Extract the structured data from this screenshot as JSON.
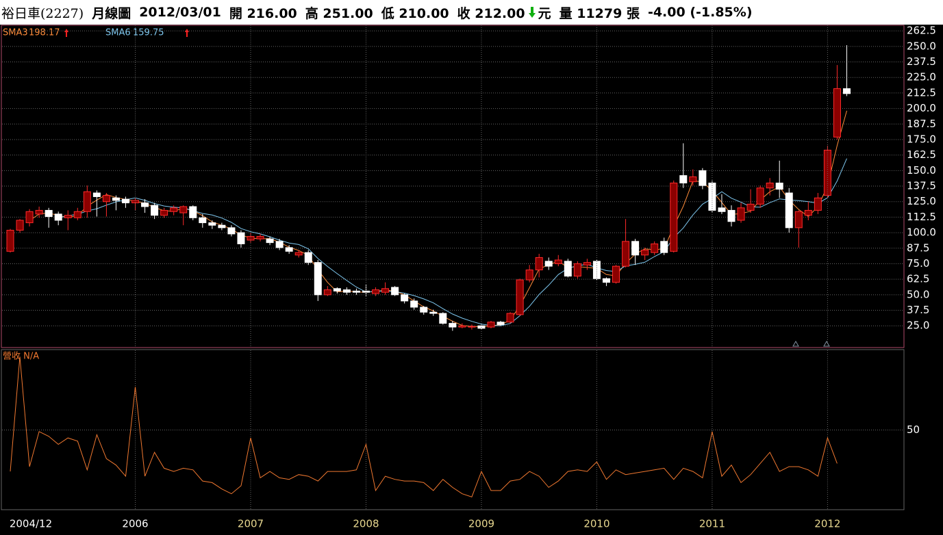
{
  "header": {
    "items": [
      "裕日車(2227)",
      "月線圖",
      "2012/03/01",
      "開 216.00",
      "高 251.00",
      "低 210.00",
      "收 212.00",
      "元",
      "量 11279 張",
      "-4.00 (-1.85%)"
    ]
  },
  "chart_data": [
    {
      "type": "candlestick",
      "open": [
        85,
        102,
        108,
        115,
        118,
        115,
        112,
        112,
        117,
        132,
        125,
        128,
        127,
        124,
        124,
        122,
        114,
        117,
        116,
        121,
        112,
        108,
        106,
        104,
        100,
        94,
        95,
        95,
        93,
        88,
        82,
        84,
        76,
        50,
        55,
        54,
        53,
        53,
        51,
        52,
        56,
        50,
        45,
        40,
        36,
        35,
        27,
        24,
        24,
        25,
        24,
        28,
        28,
        34,
        62,
        70,
        77,
        75,
        77,
        65,
        74,
        77,
        63,
        60,
        73,
        93,
        82,
        84,
        93,
        85,
        146,
        141,
        150,
        140,
        120,
        118,
        110,
        118,
        123,
        136,
        140,
        132,
        104,
        114,
        118,
        130,
        177,
        216
      ],
      "high": [
        103,
        111,
        119,
        121,
        120,
        117,
        118,
        120,
        138,
        134,
        132,
        130,
        129,
        128,
        127,
        124,
        120,
        122,
        122,
        122,
        115,
        110,
        108,
        106,
        102,
        100,
        99,
        97,
        95,
        90,
        86,
        86,
        78,
        57,
        56,
        56,
        55,
        58,
        56,
        60,
        57,
        51,
        47,
        41,
        38,
        36,
        29,
        27,
        26,
        26,
        29,
        29,
        36,
        63,
        74,
        83,
        80,
        82,
        79,
        77,
        79,
        78,
        64,
        74,
        111,
        95,
        88,
        93,
        96,
        142,
        172,
        151,
        152,
        142,
        131,
        122,
        124,
        135,
        138,
        144,
        158,
        136,
        118,
        125,
        132,
        170,
        235,
        251
      ],
      "low": [
        84,
        100,
        105,
        112,
        104,
        106,
        102,
        110,
        112,
        113,
        113,
        118,
        120,
        118,
        116,
        111,
        112,
        114,
        106,
        110,
        104,
        103,
        102,
        97,
        88,
        92,
        93,
        90,
        86,
        83,
        80,
        74,
        45,
        49,
        51,
        50,
        50,
        49,
        49,
        50,
        49,
        43,
        38,
        34,
        33,
        26,
        21,
        23,
        22,
        22,
        23,
        25,
        27,
        33,
        60,
        64,
        70,
        73,
        64,
        63,
        70,
        62,
        57,
        59,
        72,
        74,
        78,
        82,
        82,
        84,
        136,
        138,
        135,
        116,
        115,
        105,
        108,
        116,
        120,
        130,
        128,
        100,
        88,
        110,
        115,
        128,
        175,
        210
      ],
      "close": [
        102,
        110,
        117,
        118,
        113,
        110,
        114,
        117,
        133,
        129,
        130,
        126,
        124,
        126,
        121,
        114,
        118,
        120,
        121,
        112,
        108,
        106,
        104,
        99,
        91,
        97,
        97,
        92,
        88,
        85,
        84,
        76,
        50,
        54,
        53,
        52,
        52,
        52,
        54,
        55,
        50,
        45,
        40,
        36,
        35,
        27,
        24,
        25,
        24.5,
        23,
        28,
        26,
        35,
        62,
        70,
        80,
        73,
        78,
        65,
        75,
        76,
        63,
        60,
        73,
        93,
        82,
        86,
        91,
        84,
        140,
        140,
        145,
        138,
        118,
        117,
        109,
        120,
        123,
        136,
        140,
        135,
        104,
        117,
        118,
        128,
        166.5,
        216,
        212
      ],
      "up_color": "#8b0000",
      "up_edge": "#ff2a2a",
      "down_color": "#ffffff",
      "series": [
        {
          "name": "SMA3",
          "color": "#ff8c3a",
          "values": [
            null,
            null,
            109.7,
            115,
            116,
            113.7,
            112.3,
            113.7,
            121.3,
            126.3,
            130.7,
            128.3,
            126.7,
            125.3,
            123.7,
            120.3,
            117.7,
            117.3,
            119.7,
            117.7,
            113.7,
            108.7,
            106,
            103,
            98,
            95.7,
            95,
            95.3,
            92.3,
            88.3,
            85.7,
            81.7,
            70,
            60,
            52.3,
            53,
            52.3,
            52,
            52.7,
            53.7,
            53,
            50,
            45,
            40.3,
            37,
            32.7,
            28.7,
            25.3,
            24.5,
            24.2,
            25.2,
            25.7,
            29.7,
            41,
            55.7,
            70.7,
            74.3,
            77,
            72,
            72.7,
            72,
            71.3,
            66.3,
            65.3,
            75.3,
            82.7,
            87,
            86.3,
            87,
            105,
            121.3,
            141.7,
            141,
            133.7,
            124.3,
            114.7,
            115.3,
            117.3,
            126.3,
            133,
            137,
            126.3,
            118.7,
            113,
            121,
            137.5,
            170.2,
            198.17
          ]
        },
        {
          "name": "SMA6",
          "color": "#7ec8f0",
          "values": [
            null,
            null,
            null,
            null,
            null,
            111.7,
            113.7,
            114.8,
            117.5,
            119.3,
            122.2,
            124.8,
            126.5,
            128,
            126,
            123.5,
            121.5,
            120.5,
            120,
            117.7,
            115.5,
            114.2,
            111.8,
            108.3,
            103.3,
            100.8,
            99,
            96.7,
            94,
            91.7,
            90.5,
            87,
            79.2,
            72.8,
            67,
            61.5,
            56.2,
            52.2,
            52.8,
            53,
            52.5,
            51.3,
            49.3,
            46.7,
            43.5,
            38.8,
            34.5,
            31.2,
            28.6,
            26.4,
            25.3,
            25.1,
            26.9,
            33.1,
            40.7,
            50.2,
            57.7,
            66.3,
            71.3,
            73.5,
            74.5,
            71.7,
            69.5,
            68.7,
            73.3,
            74.5,
            76.2,
            80.8,
            84.8,
            96,
            103.8,
            114.3,
            123,
            127.5,
            133,
            127.8,
            124.5,
            120.8,
            120.5,
            124.2,
            127.2,
            126.3,
            125.8,
            125,
            123.7,
            128.1,
            141.6,
            159.75
          ]
        }
      ],
      "ylim": [
        7.5,
        267
      ],
      "yticks": [
        {
          "value": 25,
          "label": "25.0"
        },
        37.5,
        {
          "value": 50,
          "label": "50.0"
        },
        62.5,
        {
          "value": 75,
          "label": "75.0"
        },
        87.5,
        {
          "value": 100,
          "label": "100.0"
        },
        112.5,
        {
          "value": 125,
          "label": "125.0"
        },
        137.5,
        {
          "value": 150,
          "label": "150.0"
        },
        162.5,
        {
          "value": 175,
          "label": "175.0"
        },
        187.5,
        {
          "value": 200,
          "label": "200.0"
        },
        212.5,
        {
          "value": 225,
          "label": "225.0"
        },
        237.5,
        {
          "value": 250,
          "label": "250.0"
        },
        262.5
      ],
      "grid": true
    },
    {
      "type": "line",
      "categories": [
        "2004/12",
        null,
        null,
        null,
        null,
        null,
        null,
        null,
        null,
        null,
        null,
        null,
        null,
        "2006",
        null,
        null,
        null,
        null,
        null,
        null,
        null,
        null,
        null,
        null,
        null,
        "2007",
        null,
        null,
        null,
        null,
        null,
        null,
        null,
        null,
        null,
        null,
        null,
        "2008",
        null,
        null,
        null,
        null,
        null,
        null,
        null,
        null,
        null,
        null,
        null,
        "2009",
        null,
        null,
        null,
        null,
        null,
        null,
        null,
        null,
        null,
        null,
        null,
        "2010",
        null,
        null,
        null,
        null,
        null,
        null,
        null,
        null,
        null,
        null,
        null,
        "2011",
        null,
        null,
        null,
        null,
        null,
        null,
        null,
        null,
        null,
        null,
        null,
        "2012",
        null,
        null
      ],
      "series": [
        {
          "name": "營收 N/A",
          "color": "#f07830",
          "values": [
            24,
            96,
            27,
            49,
            46,
            41,
            45,
            43,
            25,
            47,
            32,
            28,
            21,
            77,
            21,
            36,
            26,
            24,
            26,
            25,
            18,
            17,
            13,
            10,
            15,
            45,
            20,
            24,
            20,
            19,
            22,
            21,
            18,
            24,
            24,
            24,
            25,
            41,
            12,
            21,
            19,
            18,
            18,
            17,
            12,
            19,
            14,
            10,
            8,
            24,
            12,
            12,
            18,
            19,
            24,
            21,
            14,
            18,
            24,
            25,
            24,
            30,
            19,
            25,
            22,
            23,
            24,
            25,
            26,
            19,
            26,
            24,
            20,
            49,
            21,
            28,
            17,
            22,
            29,
            36,
            24,
            27,
            27,
            25,
            21,
            45,
            29,
            null
          ]
        }
      ],
      "ylim": [
        0,
        100
      ],
      "yticks": [
        50
      ],
      "grid": true
    }
  ]
}
